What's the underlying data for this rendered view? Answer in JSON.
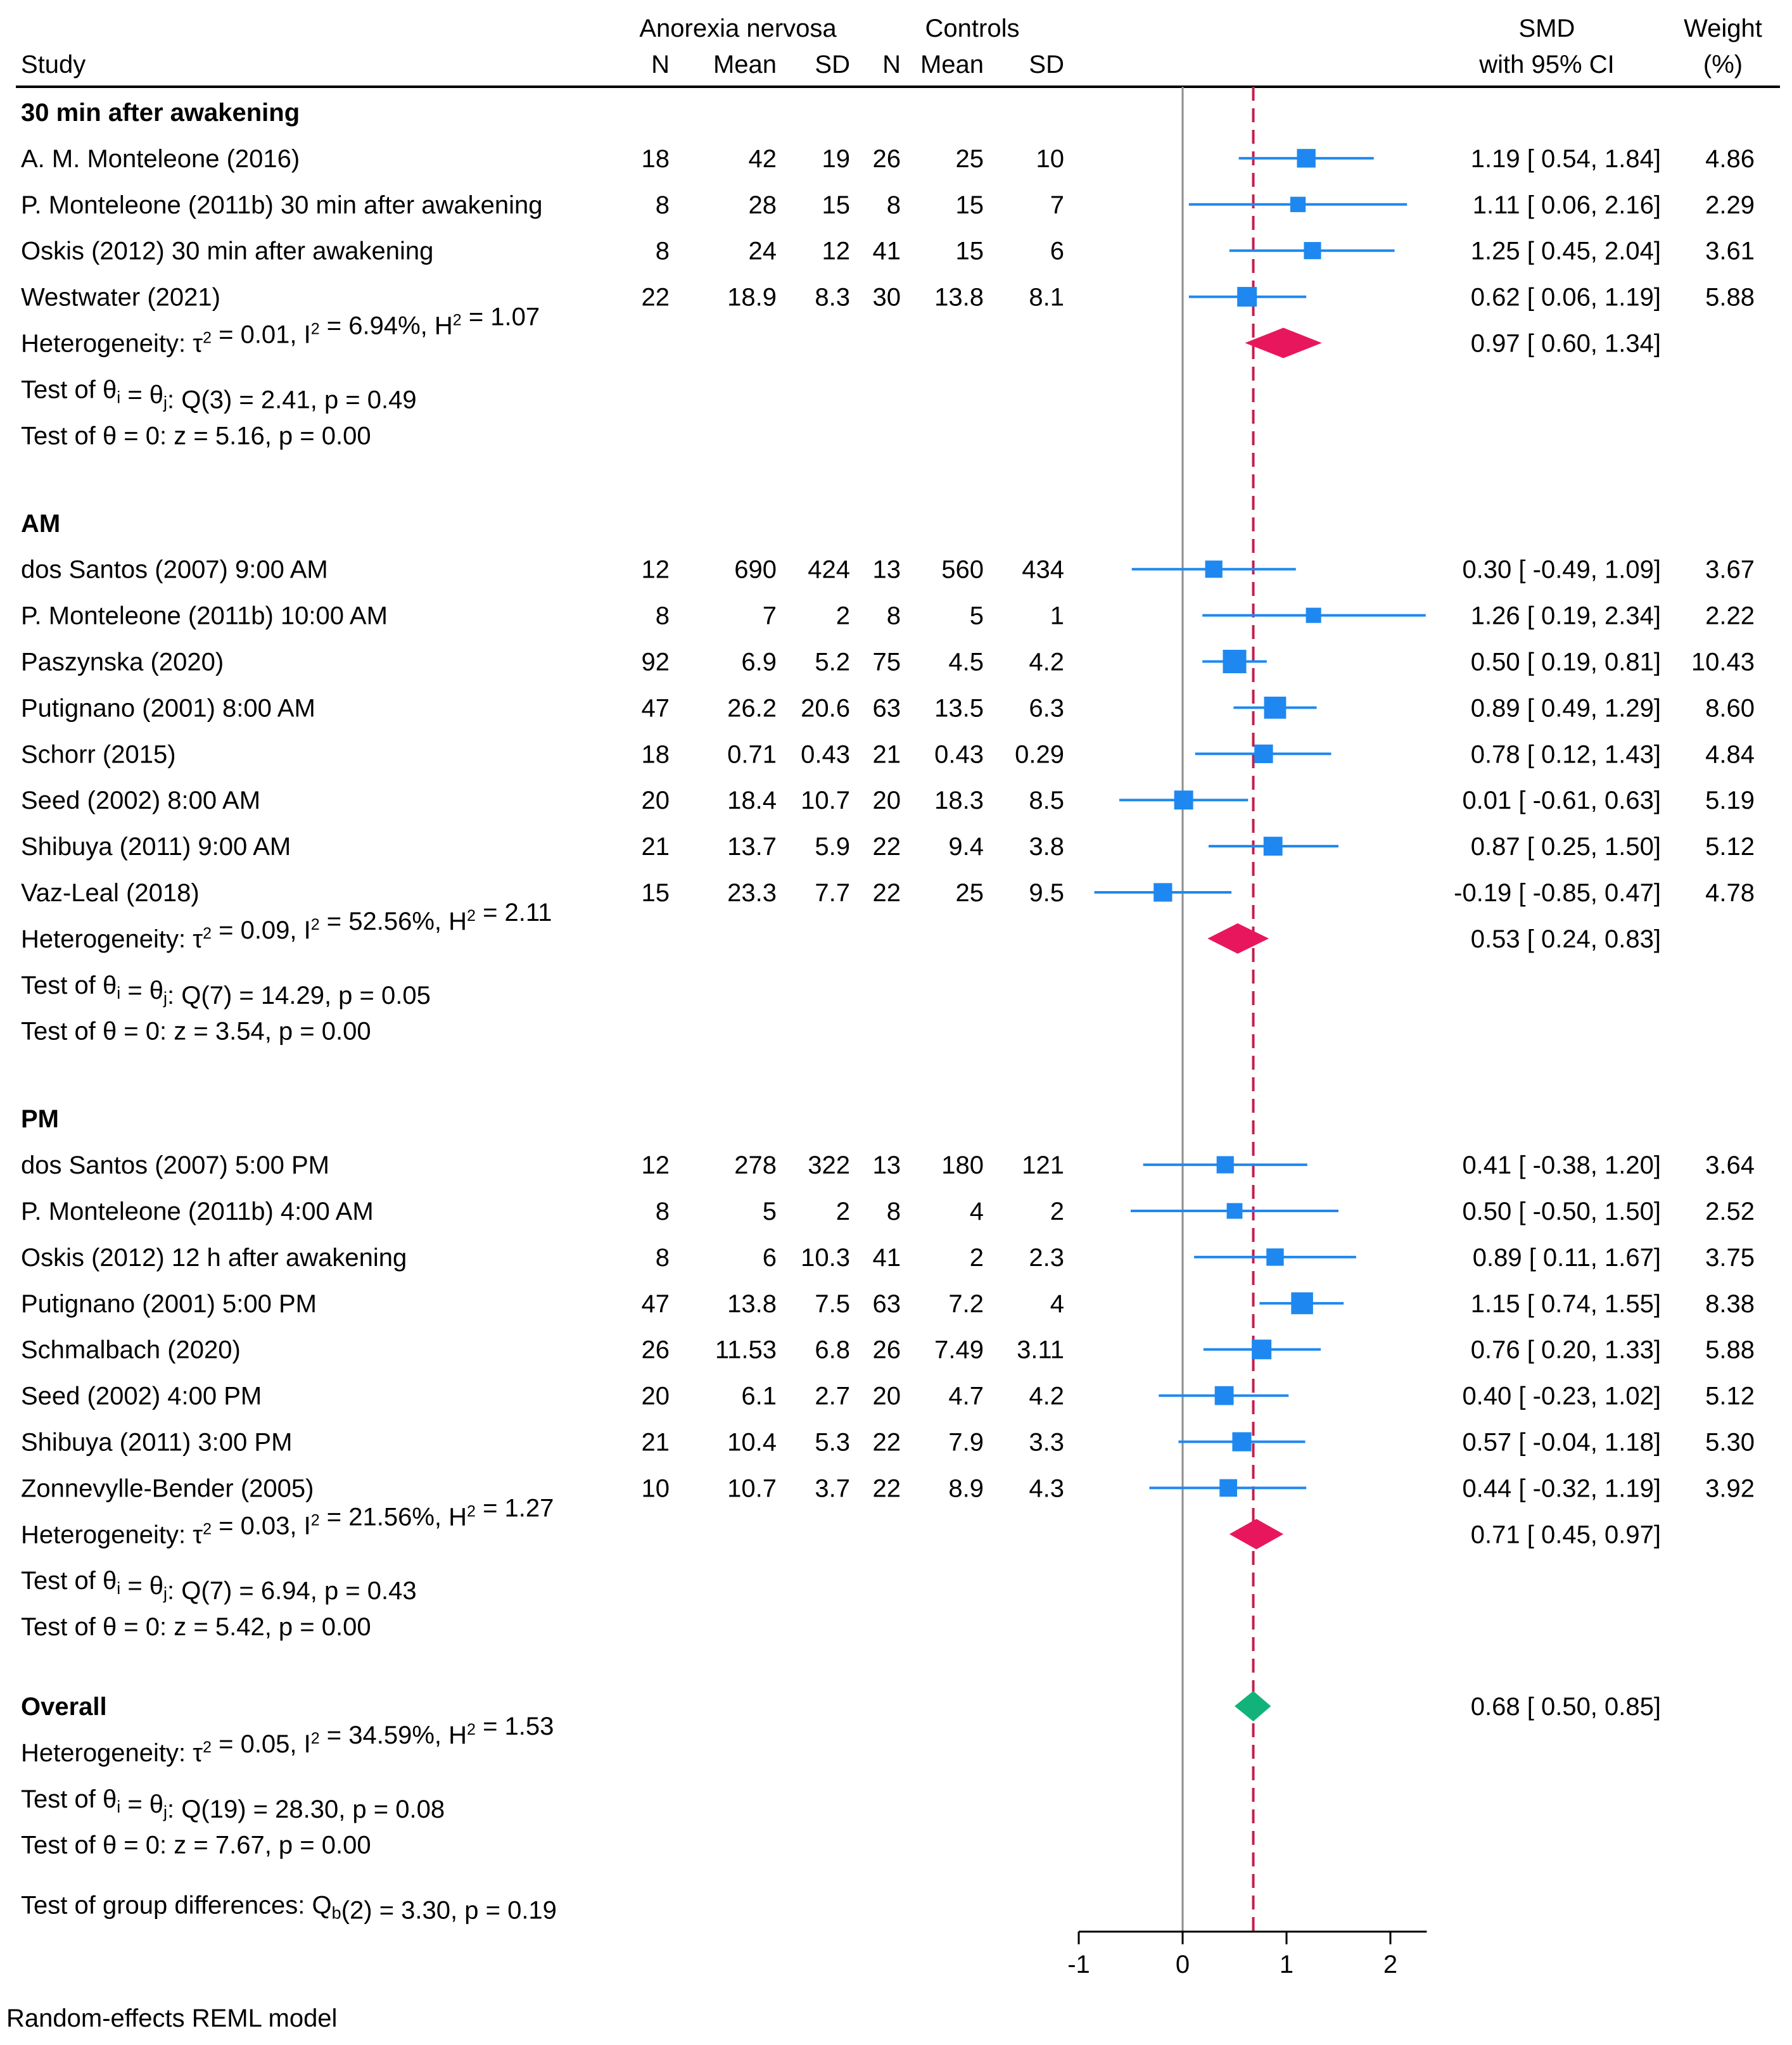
{
  "chart_data": {
    "type": "forest",
    "header": {
      "group_an": "Anorexia nervosa",
      "group_ctrl": "Controls",
      "study": "Study",
      "n": "N",
      "mean": "Mean",
      "sd": "SD",
      "smd_1": "SMD",
      "smd_2": "with 95% CI",
      "weight_1": "Weight",
      "weight_2": "(%)"
    },
    "xaxis": {
      "range": [
        -1,
        2.35
      ],
      "ticks": [
        "-1",
        "0",
        "1",
        "2"
      ],
      "tick_values": [
        -1,
        0,
        1,
        2
      ]
    },
    "null_line": 0,
    "overall_line": 0.68,
    "groups": [
      {
        "title": "30 min after awakening",
        "studies": [
          {
            "study": "A. M. Monteleone (2016)",
            "an_n": "18",
            "an_mean": "42",
            "an_sd": "19",
            "c_n": "26",
            "c_mean": "25",
            "c_sd": "10",
            "smd": 1.19,
            "lo": 0.54,
            "hi": 1.84,
            "ci_text": "1.19 [  0.54,  1.84]",
            "weight": "4.86"
          },
          {
            "study": "P. Monteleone (2011b) 30 min after awakening",
            "an_n": "8",
            "an_mean": "28",
            "an_sd": "15",
            "c_n": "8",
            "c_mean": "15",
            "c_sd": "7",
            "smd": 1.11,
            "lo": 0.06,
            "hi": 2.16,
            "ci_text": "1.11 [  0.06,  2.16]",
            "weight": "2.29"
          },
          {
            "study": "Oskis (2012) 30 min after awakening",
            "an_n": "8",
            "an_mean": "24",
            "an_sd": "12",
            "c_n": "41",
            "c_mean": "15",
            "c_sd": "6",
            "smd": 1.25,
            "lo": 0.45,
            "hi": 2.04,
            "ci_text": "1.25 [  0.45,  2.04]",
            "weight": "3.61"
          },
          {
            "study": "Westwater (2021)",
            "an_n": "22",
            "an_mean": "18.9",
            "an_sd": "8.3",
            "c_n": "30",
            "c_mean": "13.8",
            "c_sd": "8.1",
            "smd": 0.62,
            "lo": 0.06,
            "hi": 1.19,
            "ci_text": "0.62 [  0.06,  1.19]",
            "weight": "5.88"
          }
        ],
        "pooled": {
          "smd": 0.97,
          "lo": 0.6,
          "hi": 1.34,
          "ci_text": "0.97 [  0.60,  1.34]"
        },
        "het": {
          "tau2": "0.01",
          "i2": "6.94%",
          "h2": "1.07"
        },
        "q_test": {
          "df": "3",
          "q": "2.41",
          "p": "0.49"
        },
        "z_test": {
          "z": "5.16",
          "p": "0.00"
        }
      },
      {
        "title": "AM",
        "studies": [
          {
            "study": "dos Santos (2007) 9:00 AM",
            "an_n": "12",
            "an_mean": "690",
            "an_sd": "424",
            "c_n": "13",
            "c_mean": "560",
            "c_sd": "434",
            "smd": 0.3,
            "lo": -0.49,
            "hi": 1.09,
            "ci_text": "0.30 [ -0.49,  1.09]",
            "weight": "3.67"
          },
          {
            "study": "P. Monteleone (2011b) 10:00 AM",
            "an_n": "8",
            "an_mean": "7",
            "an_sd": "2",
            "c_n": "8",
            "c_mean": "5",
            "c_sd": "1",
            "smd": 1.26,
            "lo": 0.19,
            "hi": 2.34,
            "ci_text": "1.26 [  0.19,  2.34]",
            "weight": "2.22"
          },
          {
            "study": "Paszynska (2020)",
            "an_n": "92",
            "an_mean": "6.9",
            "an_sd": "5.2",
            "c_n": "75",
            "c_mean": "4.5",
            "c_sd": "4.2",
            "smd": 0.5,
            "lo": 0.19,
            "hi": 0.81,
            "ci_text": "0.50 [  0.19,  0.81]",
            "weight": "10.43"
          },
          {
            "study": "Putignano (2001) 8:00 AM",
            "an_n": "47",
            "an_mean": "26.2",
            "an_sd": "20.6",
            "c_n": "63",
            "c_mean": "13.5",
            "c_sd": "6.3",
            "smd": 0.89,
            "lo": 0.49,
            "hi": 1.29,
            "ci_text": "0.89 [  0.49,  1.29]",
            "weight": "8.60"
          },
          {
            "study": "Schorr (2015)",
            "an_n": "18",
            "an_mean": "0.71",
            "an_sd": "0.43",
            "c_n": "21",
            "c_mean": "0.43",
            "c_sd": "0.29",
            "smd": 0.78,
            "lo": 0.12,
            "hi": 1.43,
            "ci_text": "0.78 [  0.12,  1.43]",
            "weight": "4.84"
          },
          {
            "study": "Seed (2002) 8:00 AM",
            "an_n": "20",
            "an_mean": "18.4",
            "an_sd": "10.7",
            "c_n": "20",
            "c_mean": "18.3",
            "c_sd": "8.5",
            "smd": 0.01,
            "lo": -0.61,
            "hi": 0.63,
            "ci_text": "0.01 [ -0.61,  0.63]",
            "weight": "5.19"
          },
          {
            "study": "Shibuya (2011) 9:00 AM",
            "an_n": "21",
            "an_mean": "13.7",
            "an_sd": "5.9",
            "c_n": "22",
            "c_mean": "9.4",
            "c_sd": "3.8",
            "smd": 0.87,
            "lo": 0.25,
            "hi": 1.5,
            "ci_text": "0.87 [  0.25,  1.50]",
            "weight": "5.12"
          },
          {
            "study": "Vaz-Leal (2018)",
            "an_n": "15",
            "an_mean": "23.3",
            "an_sd": "7.7",
            "c_n": "22",
            "c_mean": "25",
            "c_sd": "9.5",
            "smd": -0.19,
            "lo": -0.85,
            "hi": 0.47,
            "ci_text": "-0.19 [ -0.85,  0.47]",
            "weight": "4.78"
          }
        ],
        "pooled": {
          "smd": 0.53,
          "lo": 0.24,
          "hi": 0.83,
          "ci_text": "0.53 [  0.24,  0.83]"
        },
        "het": {
          "tau2": "0.09",
          "i2": "52.56%",
          "h2": "2.11"
        },
        "q_test": {
          "df": "7",
          "q": "14.29",
          "p": "0.05"
        },
        "z_test": {
          "z": "3.54",
          "p": "0.00"
        }
      },
      {
        "title": "PM",
        "studies": [
          {
            "study": "dos Santos (2007) 5:00 PM",
            "an_n": "12",
            "an_mean": "278",
            "an_sd": "322",
            "c_n": "13",
            "c_mean": "180",
            "c_sd": "121",
            "smd": 0.41,
            "lo": -0.38,
            "hi": 1.2,
            "ci_text": "0.41 [ -0.38,  1.20]",
            "weight": "3.64"
          },
          {
            "study": "P. Monteleone (2011b) 4:00 AM",
            "an_n": "8",
            "an_mean": "5",
            "an_sd": "2",
            "c_n": "8",
            "c_mean": "4",
            "c_sd": "2",
            "smd": 0.5,
            "lo": -0.5,
            "hi": 1.5,
            "ci_text": "0.50 [ -0.50,  1.50]",
            "weight": "2.52"
          },
          {
            "study": "Oskis (2012) 12 h after awakening",
            "an_n": "8",
            "an_mean": "6",
            "an_sd": "10.3",
            "c_n": "41",
            "c_mean": "2",
            "c_sd": "2.3",
            "smd": 0.89,
            "lo": 0.11,
            "hi": 1.67,
            "ci_text": "0.89 [  0.11,  1.67]",
            "weight": "3.75"
          },
          {
            "study": "Putignano (2001) 5:00 PM",
            "an_n": "47",
            "an_mean": "13.8",
            "an_sd": "7.5",
            "c_n": "63",
            "c_mean": "7.2",
            "c_sd": "4",
            "smd": 1.15,
            "lo": 0.74,
            "hi": 1.55,
            "ci_text": "1.15 [  0.74,  1.55]",
            "weight": "8.38"
          },
          {
            "study": "Schmalbach (2020)",
            "an_n": "26",
            "an_mean": "11.53",
            "an_sd": "6.8",
            "c_n": "26",
            "c_mean": "7.49",
            "c_sd": "3.11",
            "smd": 0.76,
            "lo": 0.2,
            "hi": 1.33,
            "ci_text": "0.76 [  0.20,  1.33]",
            "weight": "5.88"
          },
          {
            "study": "Seed (2002) 4:00 PM",
            "an_n": "20",
            "an_mean": "6.1",
            "an_sd": "2.7",
            "c_n": "20",
            "c_mean": "4.7",
            "c_sd": "4.2",
            "smd": 0.4,
            "lo": -0.23,
            "hi": 1.02,
            "ci_text": "0.40 [ -0.23,  1.02]",
            "weight": "5.12"
          },
          {
            "study": "Shibuya (2011) 3:00 PM",
            "an_n": "21",
            "an_mean": "10.4",
            "an_sd": "5.3",
            "c_n": "22",
            "c_mean": "7.9",
            "c_sd": "3.3",
            "smd": 0.57,
            "lo": -0.04,
            "hi": 1.18,
            "ci_text": "0.57 [ -0.04,  1.18]",
            "weight": "5.30"
          },
          {
            "study": "Zonnevylle-Bender (2005)",
            "an_n": "10",
            "an_mean": "10.7",
            "an_sd": "3.7",
            "c_n": "22",
            "c_mean": "8.9",
            "c_sd": "4.3",
            "smd": 0.44,
            "lo": -0.32,
            "hi": 1.19,
            "ci_text": "0.44 [ -0.32,  1.19]",
            "weight": "3.92"
          }
        ],
        "pooled": {
          "smd": 0.71,
          "lo": 0.45,
          "hi": 0.97,
          "ci_text": "0.71 [  0.45,  0.97]"
        },
        "het": {
          "tau2": "0.03",
          "i2": "21.56%",
          "h2": "1.27"
        },
        "q_test": {
          "df": "7",
          "q": "6.94",
          "p": "0.43"
        },
        "z_test": {
          "z": "5.42",
          "p": "0.00"
        }
      }
    ],
    "overall": {
      "title": "Overall",
      "smd": 0.68,
      "lo": 0.5,
      "hi": 0.85,
      "ci_text": "0.68 [  0.50,  0.85]",
      "het": {
        "tau2": "0.05",
        "i2": "34.59%",
        "h2": "1.53"
      },
      "q_test": {
        "df": "19",
        "q": "28.30",
        "p": "0.08"
      },
      "z_test": {
        "z": "7.67",
        "p": "0.00"
      }
    },
    "group_diff": {
      "df": "2",
      "q": "3.30",
      "p": "0.19"
    },
    "footnote": "Random-effects REML model",
    "colors": {
      "study_marker": "#1e88f0",
      "subgroup_diamond": "#e8175d",
      "overall_diamond": "#12b37a",
      "overall_line": "#c41e4a",
      "null_line": "#8c8c8c"
    }
  }
}
